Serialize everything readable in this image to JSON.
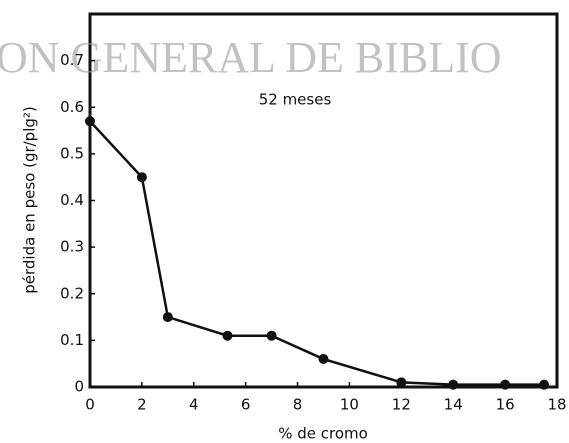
{
  "chart_data": {
    "type": "line",
    "watermark": "ON GENERAL DE BIBLIO",
    "annotation": "52 meses",
    "xlabel": "% de cromo",
    "ylabel": "pérdida en peso (gr/plg²)",
    "x": [
      0,
      2,
      3,
      5.3,
      7,
      9,
      12,
      14,
      16,
      17.5
    ],
    "values": [
      0.57,
      0.45,
      0.15,
      0.11,
      0.11,
      0.06,
      0.01,
      0.005,
      0.005,
      0.005
    ],
    "color": "#111111",
    "xlim": [
      0,
      18
    ],
    "xticks": [
      0,
      2,
      4,
      6,
      8,
      10,
      12,
      14,
      16,
      18
    ],
    "ylim": [
      0,
      0.8
    ],
    "yticks": [
      0,
      0.1,
      0.2,
      0.3,
      0.4,
      0.5,
      0.6,
      0.7
    ],
    "grid": false
  }
}
